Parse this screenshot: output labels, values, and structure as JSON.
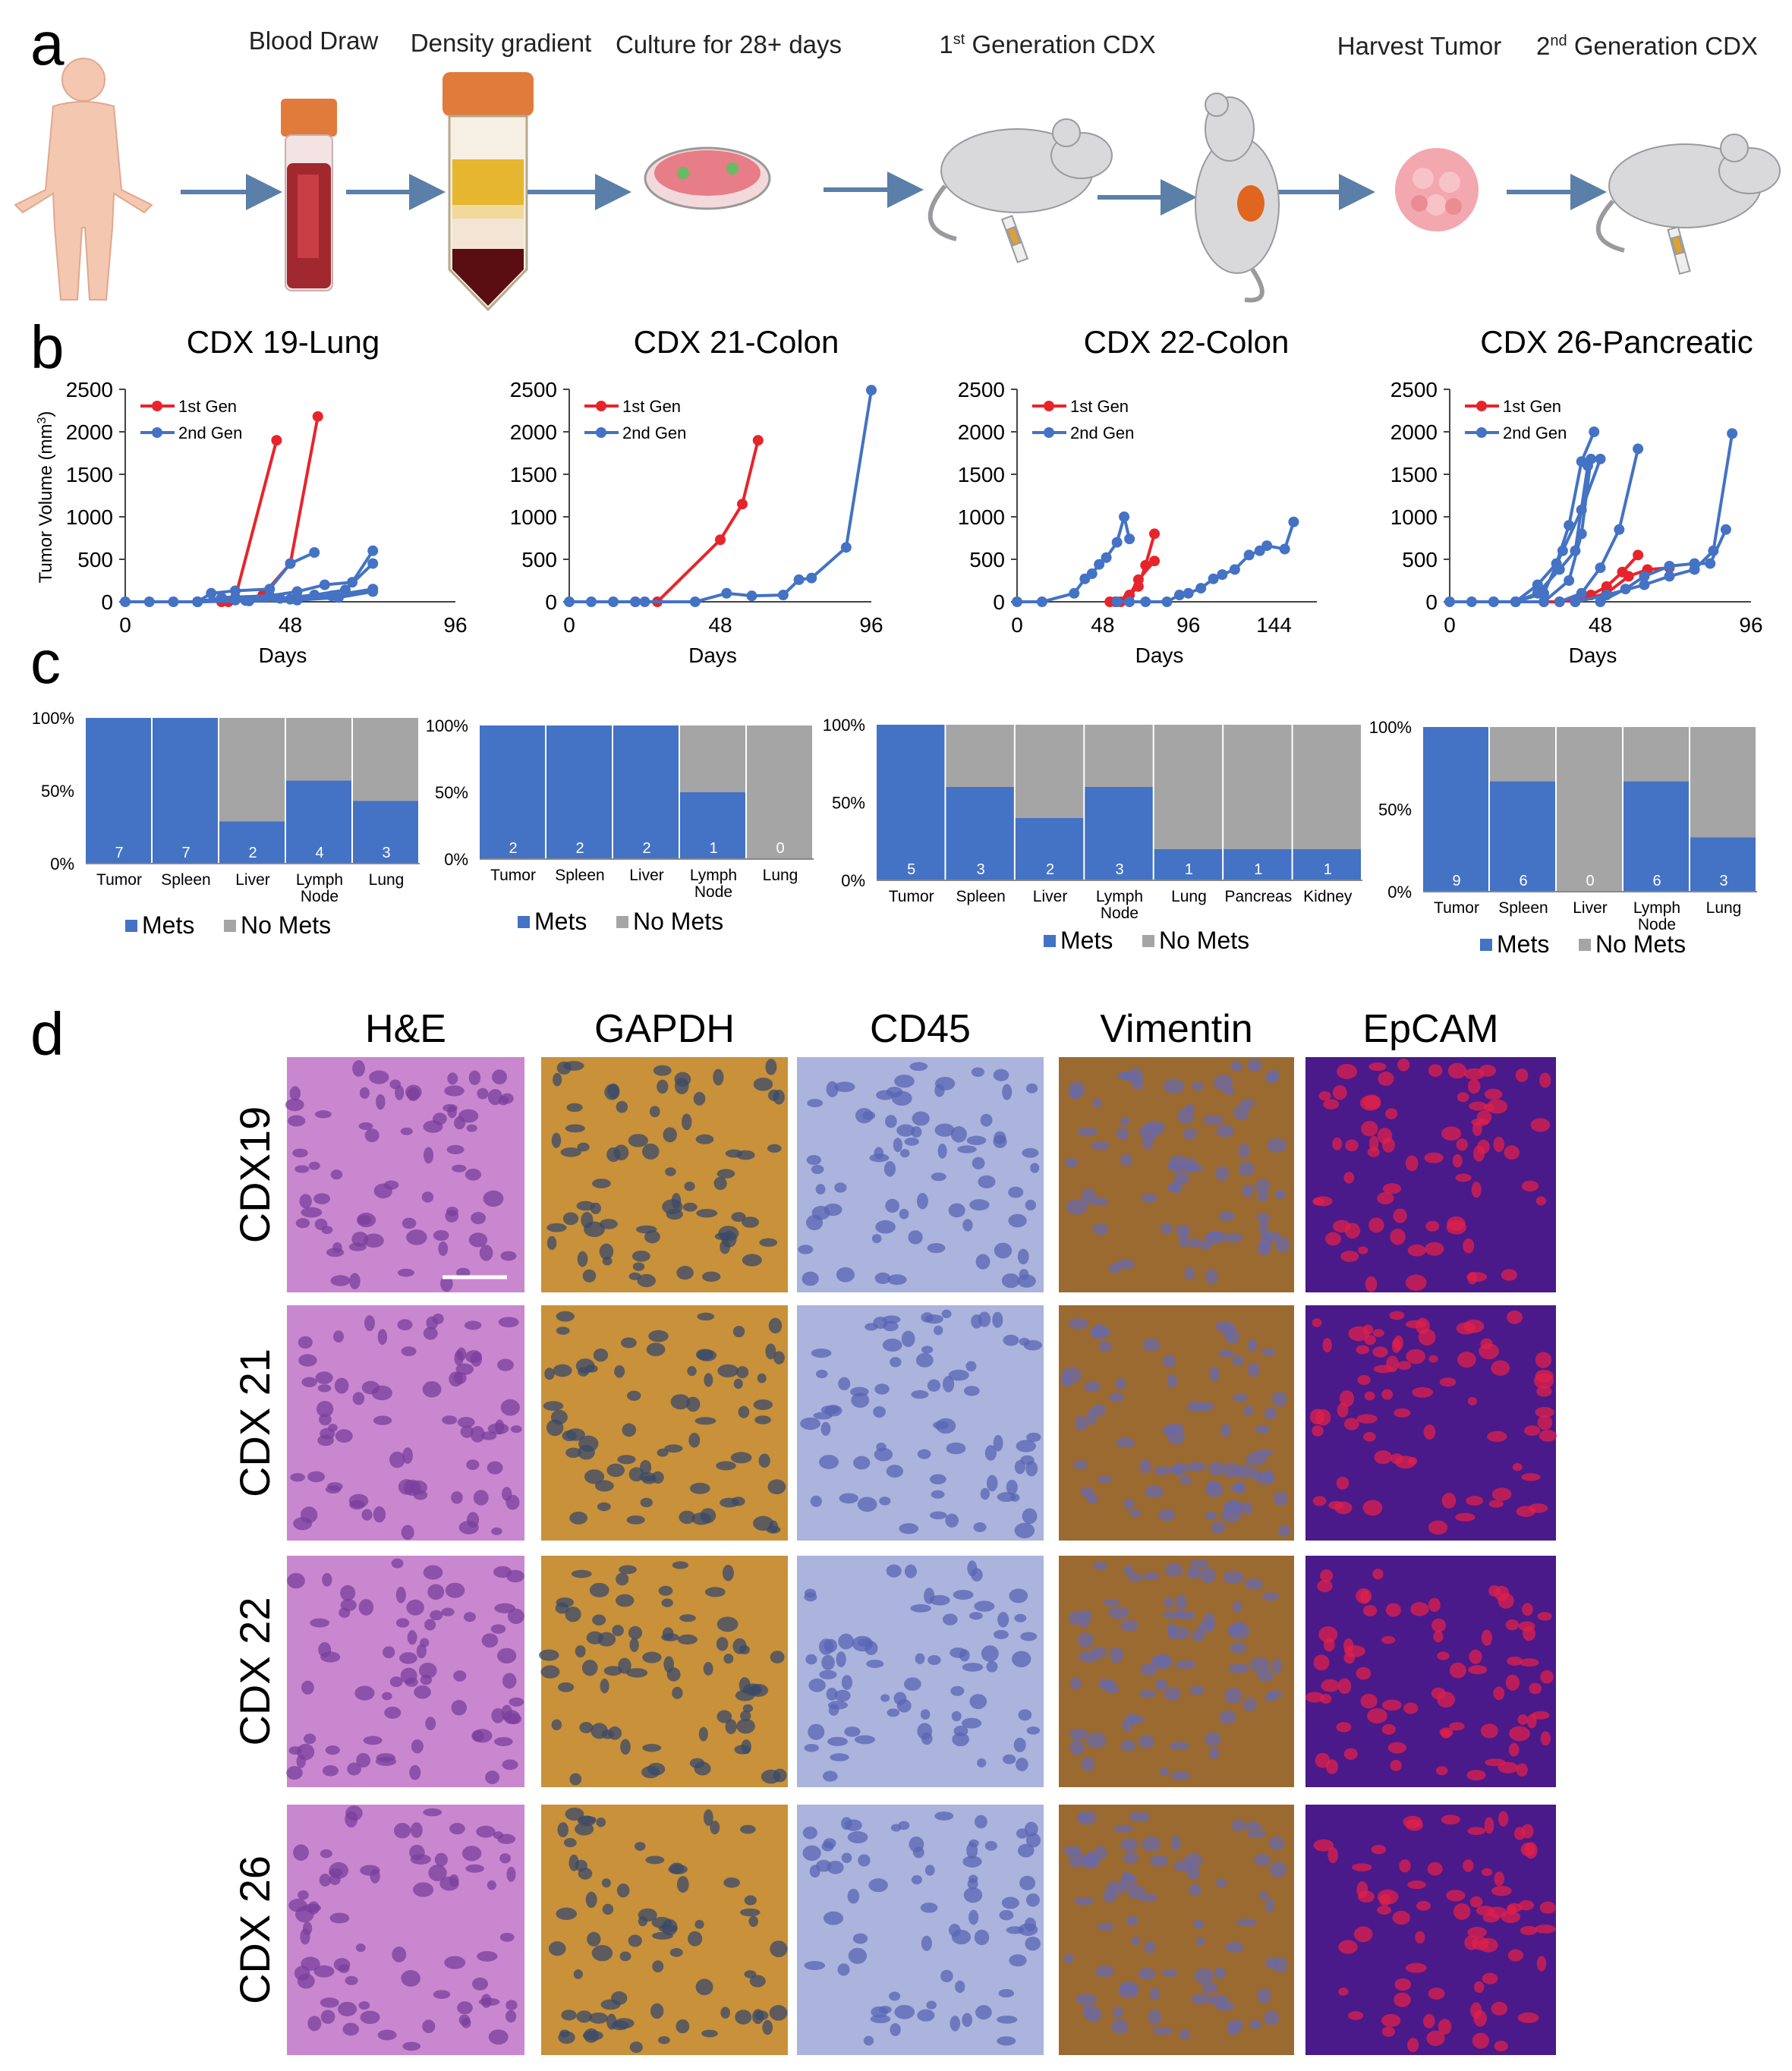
{
  "panel_letters": [
    "a",
    "b",
    "c",
    "d"
  ],
  "workflow": {
    "steps": [
      {
        "label": "Blood Draw",
        "sup": "",
        "rest": ""
      },
      {
        "label": "Density gradient",
        "sup": "",
        "rest": ""
      },
      {
        "label": "Culture for 28+ days",
        "sup": "",
        "rest": ""
      },
      {
        "label": "1",
        "sup": "st",
        "rest": " Generation CDX"
      },
      {
        "label": "Harvest Tumor",
        "sup": "",
        "rest": ""
      },
      {
        "label": "2",
        "sup": "nd",
        "rest": " Generation CDX"
      }
    ],
    "icons": [
      "human-body-icon",
      "blood-tube-icon",
      "centrifuge-tube-icon",
      "culture-dish-icon",
      "injected-mouse-icon",
      "tumor-mouse-icon",
      "tumor-icon",
      "injected-mouse-icon"
    ]
  },
  "chart_data": [
    {
      "type": "line",
      "title": "CDX 19-Lung",
      "xlabel": "Days",
      "ylabel": "Tumor Volume (mm3)",
      "ylim": [
        0,
        2500
      ],
      "xlim": [
        0,
        96
      ],
      "xticks": [
        0,
        48,
        96
      ],
      "yticks": [
        0,
        500,
        1000,
        1500,
        2000,
        2500
      ],
      "legend": "top-left",
      "series": [
        {
          "name": "1st Gen",
          "color": "#e8242b",
          "points": [
            [
              28,
              0
            ],
            [
              32,
              50
            ],
            [
              44,
              1900
            ]
          ]
        },
        {
          "name": "",
          "color": "#e8242b",
          "points": [
            [
              30,
              0
            ],
            [
              40,
              80
            ],
            [
              48,
              450
            ],
            [
              56,
              2180
            ]
          ]
        },
        {
          "name": "2nd Gen",
          "color": "#4472c4",
          "points": [
            [
              0,
              0
            ],
            [
              7,
              0
            ],
            [
              14,
              0
            ],
            [
              21,
              0
            ],
            [
              25,
              100
            ],
            [
              32,
              130
            ],
            [
              42,
              150
            ],
            [
              48,
              450
            ],
            [
              55,
              580
            ]
          ]
        },
        {
          "name": "",
          "color": "#4472c4",
          "points": [
            [
              21,
              0
            ],
            [
              28,
              50
            ],
            [
              42,
              70
            ],
            [
              50,
              120
            ],
            [
              58,
              200
            ],
            [
              66,
              230
            ],
            [
              72,
              600
            ]
          ]
        },
        {
          "name": "",
          "color": "#4472c4",
          "points": [
            [
              21,
              0
            ],
            [
              32,
              20
            ],
            [
              45,
              40
            ],
            [
              55,
              80
            ],
            [
              64,
              140
            ],
            [
              72,
              450
            ]
          ]
        },
        {
          "name": "",
          "color": "#4472c4",
          "points": [
            [
              21,
              0
            ],
            [
              35,
              15
            ],
            [
              48,
              30
            ],
            [
              60,
              70
            ],
            [
              72,
              150
            ]
          ]
        },
        {
          "name": "",
          "color": "#4472c4",
          "points": [
            [
              21,
              0
            ],
            [
              36,
              10
            ],
            [
              50,
              20
            ],
            [
              62,
              50
            ],
            [
              72,
              120
            ]
          ]
        }
      ]
    },
    {
      "type": "line",
      "title": "CDX 21-Colon",
      "xlabel": "Days",
      "ylabel": "",
      "ylim": [
        0,
        2500
      ],
      "xlim": [
        0,
        96
      ],
      "xticks": [
        0,
        48,
        96
      ],
      "yticks": [
        0,
        500,
        1000,
        1500,
        2000,
        2500
      ],
      "legend": "top-left",
      "series": [
        {
          "name": "1st Gen",
          "color": "#e8242b",
          "points": [
            [
              21,
              0
            ],
            [
              28,
              0
            ],
            [
              48,
              730
            ],
            [
              55,
              1150
            ],
            [
              60,
              1900
            ]
          ]
        },
        {
          "name": "2nd Gen",
          "color": "#4472c4",
          "points": [
            [
              0,
              0
            ],
            [
              7,
              0
            ],
            [
              14,
              0
            ],
            [
              21,
              0
            ],
            [
              24,
              0
            ],
            [
              40,
              0
            ],
            [
              50,
              100
            ],
            [
              58,
              70
            ],
            [
              68,
              80
            ],
            [
              73,
              260
            ],
            [
              77,
              280
            ],
            [
              88,
              640
            ],
            [
              96,
              2490
            ]
          ]
        }
      ]
    },
    {
      "type": "line",
      "title": "CDX 22-Colon",
      "xlabel": "Days",
      "ylabel": "",
      "ylim": [
        0,
        2500
      ],
      "xlim": [
        0,
        168
      ],
      "xticks": [
        0,
        48,
        96,
        144
      ],
      "yticks": [
        0,
        500,
        1000,
        1500,
        2000,
        2500
      ],
      "legend": "top-left",
      "series": [
        {
          "name": "1st Gen",
          "color": "#e8242b",
          "points": [
            [
              52,
              0
            ],
            [
              58,
              0
            ],
            [
              63,
              80
            ],
            [
              68,
              180
            ],
            [
              72,
              430
            ],
            [
              77,
              800
            ]
          ]
        },
        {
          "name": "",
          "color": "#e8242b",
          "points": [
            [
              55,
              0
            ],
            [
              62,
              40
            ],
            [
              68,
              260
            ],
            [
              77,
              480
            ]
          ]
        },
        {
          "name": "2nd Gen",
          "color": "#4472c4",
          "points": [
            [
              0,
              0
            ],
            [
              14,
              0
            ],
            [
              32,
              100
            ],
            [
              38,
              270
            ],
            [
              42,
              330
            ],
            [
              46,
              440
            ],
            [
              50,
              520
            ],
            [
              56,
              700
            ],
            [
              60,
              1000
            ],
            [
              63,
              740
            ]
          ]
        },
        {
          "name": "",
          "color": "#4472c4",
          "points": [
            [
              56,
              0
            ],
            [
              63,
              0
            ],
            [
              72,
              0
            ],
            [
              84,
              0
            ],
            [
              91,
              80
            ],
            [
              96,
              100
            ],
            [
              103,
              160
            ],
            [
              110,
              270
            ],
            [
              115,
              320
            ],
            [
              122,
              380
            ],
            [
              130,
              550
            ],
            [
              136,
              600
            ],
            [
              140,
              660
            ],
            [
              150,
              620
            ],
            [
              155,
              940
            ]
          ]
        }
      ]
    },
    {
      "type": "line",
      "title": "CDX 26-Pancreatic",
      "xlabel": "Days",
      "ylabel": "",
      "ylim": [
        0,
        2500
      ],
      "xlim": [
        0,
        96
      ],
      "xticks": [
        0,
        48,
        96
      ],
      "yticks": [
        0,
        500,
        1000,
        1500,
        2000,
        2500
      ],
      "legend": "top-left",
      "series": [
        {
          "name": "1st Gen",
          "color": "#e8242b",
          "points": [
            [
              30,
              0
            ],
            [
              35,
              0
            ],
            [
              40,
              20
            ],
            [
              45,
              80
            ],
            [
              50,
              180
            ],
            [
              55,
              350
            ],
            [
              60,
              550
            ]
          ]
        },
        {
          "name": "",
          "color": "#e8242b",
          "points": [
            [
              40,
              0
            ],
            [
              50,
              100
            ],
            [
              57,
              300
            ],
            [
              63,
              380
            ],
            [
              70,
              400
            ]
          ]
        },
        {
          "name": "2nd Gen",
          "color": "#4472c4",
          "points": [
            [
              0,
              0
            ],
            [
              7,
              0
            ],
            [
              14,
              0
            ],
            [
              21,
              0
            ],
            [
              28,
              100
            ],
            [
              35,
              380
            ],
            [
              40,
              600
            ],
            [
              44,
              1600
            ]
          ]
        },
        {
          "name": "",
          "color": "#4472c4",
          "points": [
            [
              14,
              0
            ],
            [
              21,
              0
            ],
            [
              28,
              200
            ],
            [
              34,
              450
            ],
            [
              38,
              900
            ],
            [
              42,
              1650
            ],
            [
              46,
              2000
            ]
          ]
        },
        {
          "name": "",
          "color": "#4472c4",
          "points": [
            [
              21,
              0
            ],
            [
              30,
              100
            ],
            [
              36,
              600
            ],
            [
              42,
              1080
            ],
            [
              48,
              1680
            ]
          ]
        },
        {
          "name": "",
          "color": "#4472c4",
          "points": [
            [
              21,
              0
            ],
            [
              30,
              0
            ],
            [
              38,
              250
            ],
            [
              42,
              800
            ],
            [
              45,
              1680
            ]
          ]
        },
        {
          "name": "",
          "color": "#4472c4",
          "points": [
            [
              35,
              0
            ],
            [
              42,
              100
            ],
            [
              48,
              400
            ],
            [
              54,
              850
            ],
            [
              60,
              1800
            ]
          ]
        },
        {
          "name": "",
          "color": "#4472c4",
          "points": [
            [
              48,
              0
            ],
            [
              56,
              150
            ],
            [
              62,
              300
            ],
            [
              70,
              420
            ],
            [
              78,
              450
            ],
            [
              83,
              450
            ],
            [
              88,
              850
            ]
          ]
        },
        {
          "name": "",
          "color": "#4472c4",
          "points": [
            [
              40,
              0
            ],
            [
              50,
              80
            ],
            [
              62,
              200
            ],
            [
              70,
              300
            ],
            [
              78,
              380
            ],
            [
              84,
              600
            ],
            [
              90,
              1980
            ]
          ]
        }
      ]
    },
    {
      "type": "bar",
      "stacked": true,
      "categories": [
        "Tumor",
        "Spleen",
        "Liver",
        "Lymph Node",
        "Lung"
      ],
      "values_pct": [
        100,
        100,
        29,
        57,
        43
      ],
      "labels": [
        "7",
        "7",
        "2",
        "4",
        "3"
      ],
      "yticks": [
        "100%",
        "50%",
        "0%"
      ],
      "legend": [
        "Mets",
        "No Mets"
      ],
      "colors": {
        "Mets": "#4472c4",
        "No Mets": "#a5a5a5"
      }
    },
    {
      "type": "bar",
      "stacked": true,
      "categories": [
        "Tumor",
        "Spleen",
        "Liver",
        "Lymph Node",
        "Lung"
      ],
      "values_pct": [
        100,
        100,
        100,
        50,
        0
      ],
      "labels": [
        "2",
        "2",
        "2",
        "1",
        "0"
      ],
      "yticks": [
        "100%",
        "50%",
        "0%"
      ],
      "legend": [
        "Mets",
        "No Mets"
      ],
      "colors": {
        "Mets": "#4472c4",
        "No Mets": "#a5a5a5"
      }
    },
    {
      "type": "bar",
      "stacked": true,
      "categories": [
        "Tumor",
        "Spleen",
        "Liver",
        "Lymph Node",
        "Lung",
        "Pancreas",
        "Kidney"
      ],
      "values_pct": [
        100,
        60,
        40,
        60,
        20,
        20,
        20
      ],
      "labels": [
        "5",
        "3",
        "2",
        "3",
        "1",
        "1",
        "1"
      ],
      "yticks": [
        "100%",
        "50%",
        "0%"
      ],
      "legend": [
        "Mets",
        "No Mets"
      ],
      "colors": {
        "Mets": "#4472c4",
        "No Mets": "#a5a5a5"
      }
    },
    {
      "type": "bar",
      "stacked": true,
      "categories": [
        "Tumor",
        "Spleen",
        "Liver",
        "Lymph Node",
        "Lung"
      ],
      "values_pct": [
        100,
        67,
        0,
        67,
        33
      ],
      "labels": [
        "9",
        "6",
        "0",
        "6",
        "3"
      ],
      "yticks": [
        "100%",
        "50%",
        "0%"
      ],
      "legend": [
        "Mets",
        "No Mets"
      ],
      "colors": {
        "Mets": "#4472c4",
        "No Mets": "#a5a5a5"
      }
    }
  ],
  "histology": {
    "columns": [
      "H&E",
      "GAPDH",
      "CD45",
      "Vimentin",
      "EpCAM"
    ],
    "rows": [
      "CDX19",
      "CDX 21",
      "CDX 22",
      "CDX 26"
    ],
    "stain_colors": {
      "H&E": {
        "bg": "#c987cf",
        "nuc": "#7a3f9c"
      },
      "GAPDH": {
        "bg": "#c8913a",
        "nuc": "#3a4a6a"
      },
      "CD45": {
        "bg": "#aab4dc",
        "nuc": "#5a64b4"
      },
      "Vimentin": {
        "bg": "#9a6a30",
        "nuc": "#6a6aa8"
      },
      "EpCAM": {
        "bg": "#4a1a8a",
        "nuc": "#e0204a"
      }
    }
  }
}
